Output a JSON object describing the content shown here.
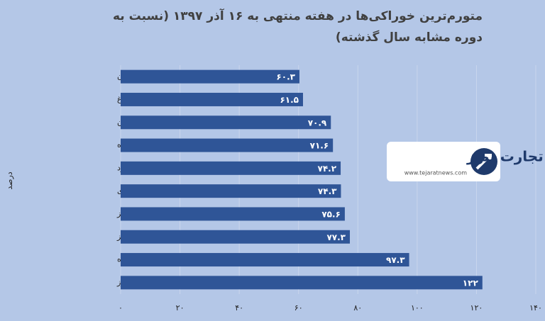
{
  "chart_data": {
    "type": "bar",
    "orientation": "horizontal",
    "title": "متورم‌ترین خوراکی‌ها در هفته منتهی به ۱۶ آذر ۱۳۹۷ (نسبت به دوره مشابه سال گذشته)",
    "y_label": "درصد",
    "logo_text": "تجارت نیوز",
    "logo_url": "www.tejaratnews.com",
    "categories": [
      "گوشت گاو و گوساله بدون استخوان",
      "تخم مرغ",
      "بادنجان",
      "پنیر پاستوریزه",
      "سیب زرد",
      "کیوی",
      "کدو سبز",
      "سیب قرمز",
      "ماست پاستوریزه",
      "موز"
    ],
    "values": [
      60.3,
      61.5,
      70.9,
      71.6,
      74.2,
      74.3,
      75.6,
      77.3,
      97.3,
      122
    ],
    "value_labels": [
      "۶۰.۳",
      "۶۱.۵",
      "۷۰.۹",
      "۷۱.۶",
      "۷۴.۲",
      "۷۴.۳",
      "۷۵.۶",
      "۷۷.۳",
      "۹۷.۳",
      "۱۲۲"
    ],
    "color": "#2f5597",
    "xlim": [
      0,
      140
    ],
    "xticks": [
      {
        "value": 0,
        "label": "۰"
      },
      {
        "value": 20,
        "label": "۲۰"
      },
      {
        "value": 40,
        "label": "۴۰"
      },
      {
        "value": 60,
        "label": "۶۰"
      },
      {
        "value": 80,
        "label": "۸۰"
      },
      {
        "value": 100,
        "label": "۱۰۰"
      },
      {
        "value": 120,
        "label": "۱۲۰"
      },
      {
        "value": 140,
        "label": "۱۴۰"
      }
    ],
    "grid": true
  }
}
